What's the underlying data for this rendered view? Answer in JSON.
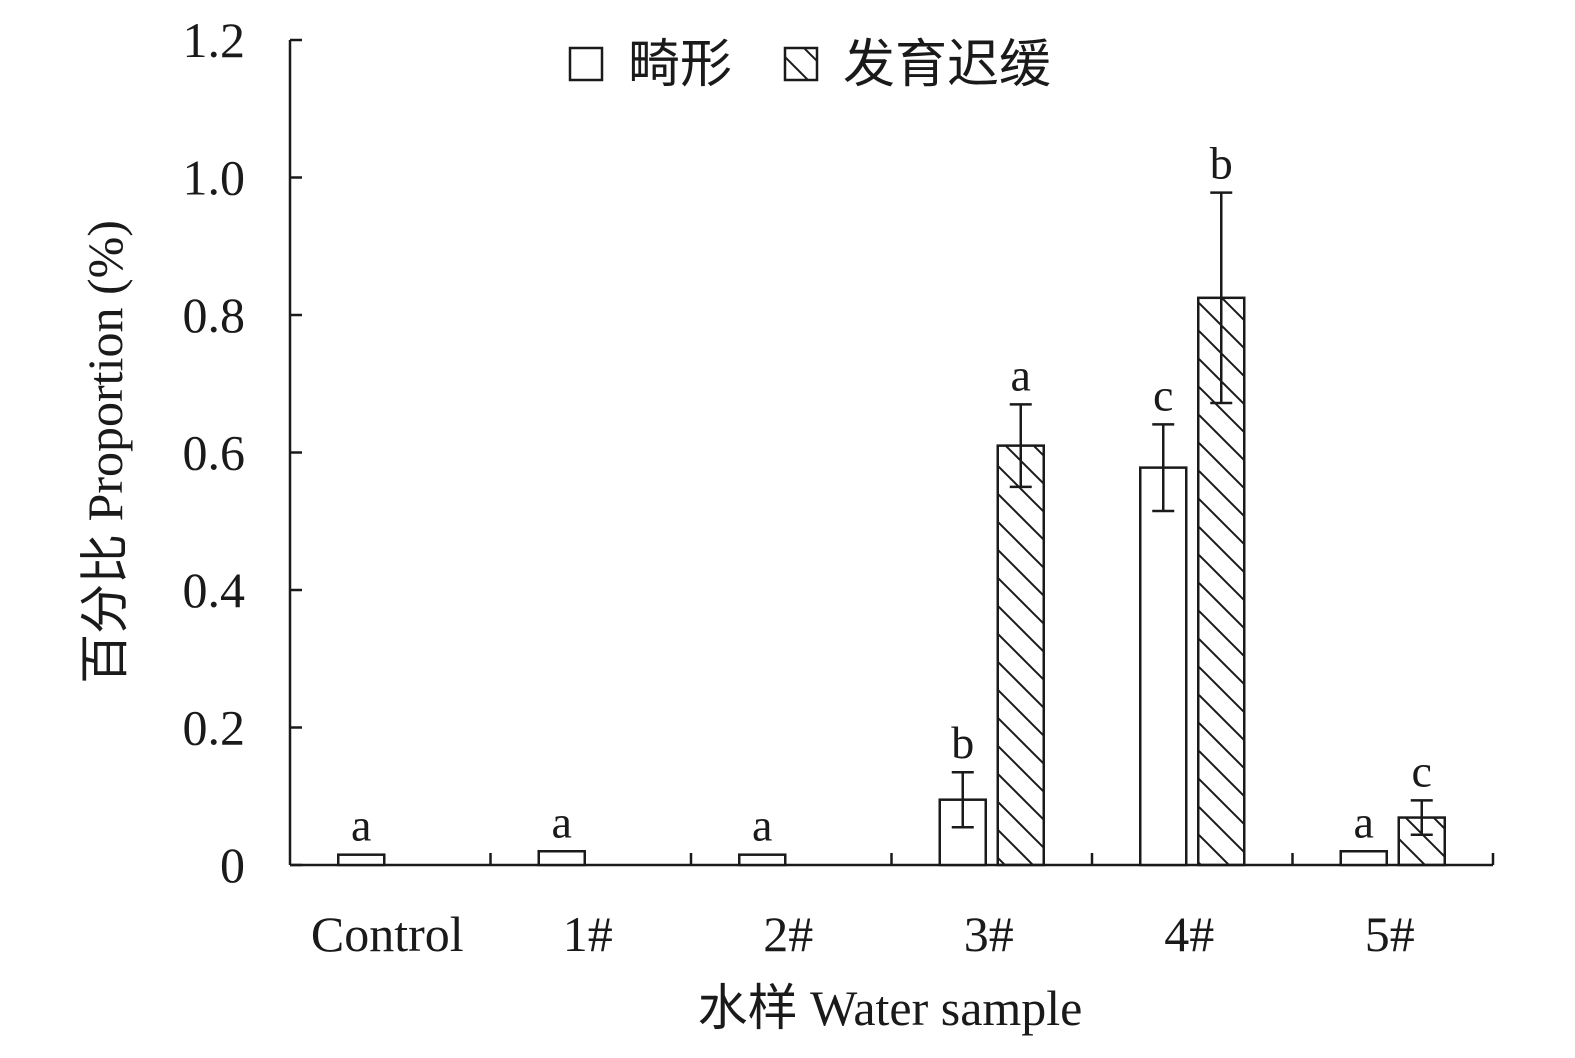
{
  "chart_data": {
    "type": "bar",
    "title": "",
    "xlabel": "水样 Water sample",
    "ylabel": "百分比 Proportion (%)",
    "ylim": [
      0,
      1.2
    ],
    "yticks": [
      0,
      0.2,
      0.4,
      0.6,
      0.8,
      1.0,
      1.2
    ],
    "ytick_labels": [
      "0",
      "0.2",
      "0.4",
      "0.6",
      "0.8",
      "1.0",
      "1.2"
    ],
    "categories": [
      "Control",
      "1#",
      "2#",
      "3#",
      "4#",
      "5#"
    ],
    "legend_position": "top-center",
    "grid": false,
    "series": [
      {
        "name": "畸形",
        "pattern": "open",
        "color": "#ffffff",
        "values": [
          0.015,
          0.02,
          0.015,
          0.095,
          0.578,
          0.02
        ],
        "errors": [
          null,
          null,
          null,
          0.04,
          0.063,
          null
        ],
        "labels": [
          "a",
          "a",
          "a",
          "b",
          "c",
          "a"
        ]
      },
      {
        "name": "发育迟缓",
        "pattern": "hatched",
        "color": "#ffffff",
        "values": [
          null,
          null,
          null,
          0.61,
          0.825,
          0.069
        ],
        "errors": [
          null,
          null,
          null,
          0.06,
          0.153,
          0.025
        ],
        "labels": [
          null,
          null,
          null,
          "a",
          "b",
          "c"
        ]
      }
    ]
  }
}
